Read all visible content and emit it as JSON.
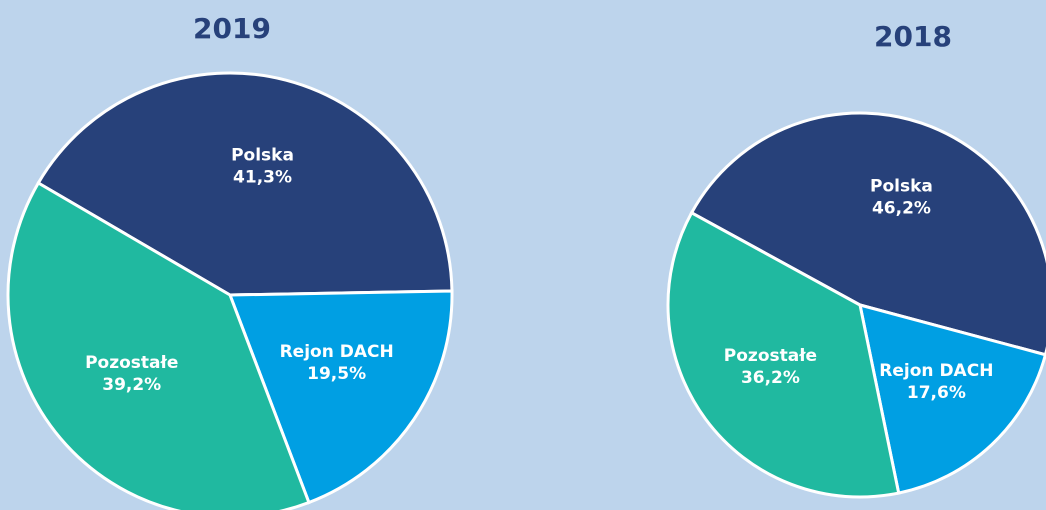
{
  "chart_data": [
    {
      "type": "pie",
      "title": "2019",
      "categories": [
        "Polska",
        "Rejon DACH",
        "Pozostałe"
      ],
      "values": [
        41.3,
        19.5,
        39.2
      ],
      "value_labels": [
        "41,3%",
        "19,5%",
        "39,2%"
      ],
      "colors": [
        "#27417a",
        "#009fe3",
        "#20b9a0"
      ]
    },
    {
      "type": "pie",
      "title": "2018",
      "categories": [
        "Polska",
        "Rejon DACH",
        "Pozostałe"
      ],
      "values": [
        46.2,
        17.6,
        36.2
      ],
      "value_labels": [
        "46,2%",
        "17,6%",
        "36,2%"
      ],
      "colors": [
        "#27417a",
        "#009fe3",
        "#20b9a0"
      ]
    }
  ]
}
